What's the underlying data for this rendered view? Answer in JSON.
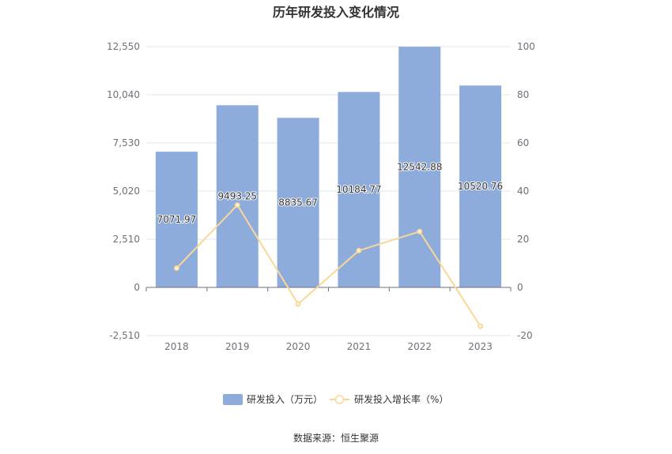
{
  "chart_data": {
    "type": "bar",
    "title": "历年研发投入变化情况",
    "categories": [
      "2018",
      "2019",
      "2020",
      "2021",
      "2022",
      "2023"
    ],
    "series": [
      {
        "name": "研发投入（万元）",
        "type": "bar",
        "axis": "left",
        "values": [
          7071.97,
          9493.25,
          8835.67,
          10184.77,
          12542.88,
          10520.76
        ],
        "labels": [
          "7071.97",
          "9493.25",
          "8835.67",
          "10184.77",
          "12542.88",
          "10520.76"
        ],
        "color": "#8eacdb"
      },
      {
        "name": "研发投入增长率（%）",
        "type": "line",
        "axis": "right",
        "values": [
          8.0,
          34.2,
          -6.9,
          15.3,
          23.2,
          -16.1
        ],
        "color": "#fad797"
      }
    ],
    "y_left": {
      "ticks": [
        "12,550",
        "10,040",
        "7,530",
        "5,020",
        "2,510",
        "0",
        "-2,510"
      ],
      "ylim": [
        -2510,
        12550
      ]
    },
    "y_right": {
      "ticks": [
        "100",
        "80",
        "60",
        "40",
        "20",
        "0",
        "-20"
      ],
      "ylim": [
        -20,
        100
      ]
    },
    "grid": true,
    "legend_position": "bottom"
  },
  "source": "数据来源：恒生聚源"
}
